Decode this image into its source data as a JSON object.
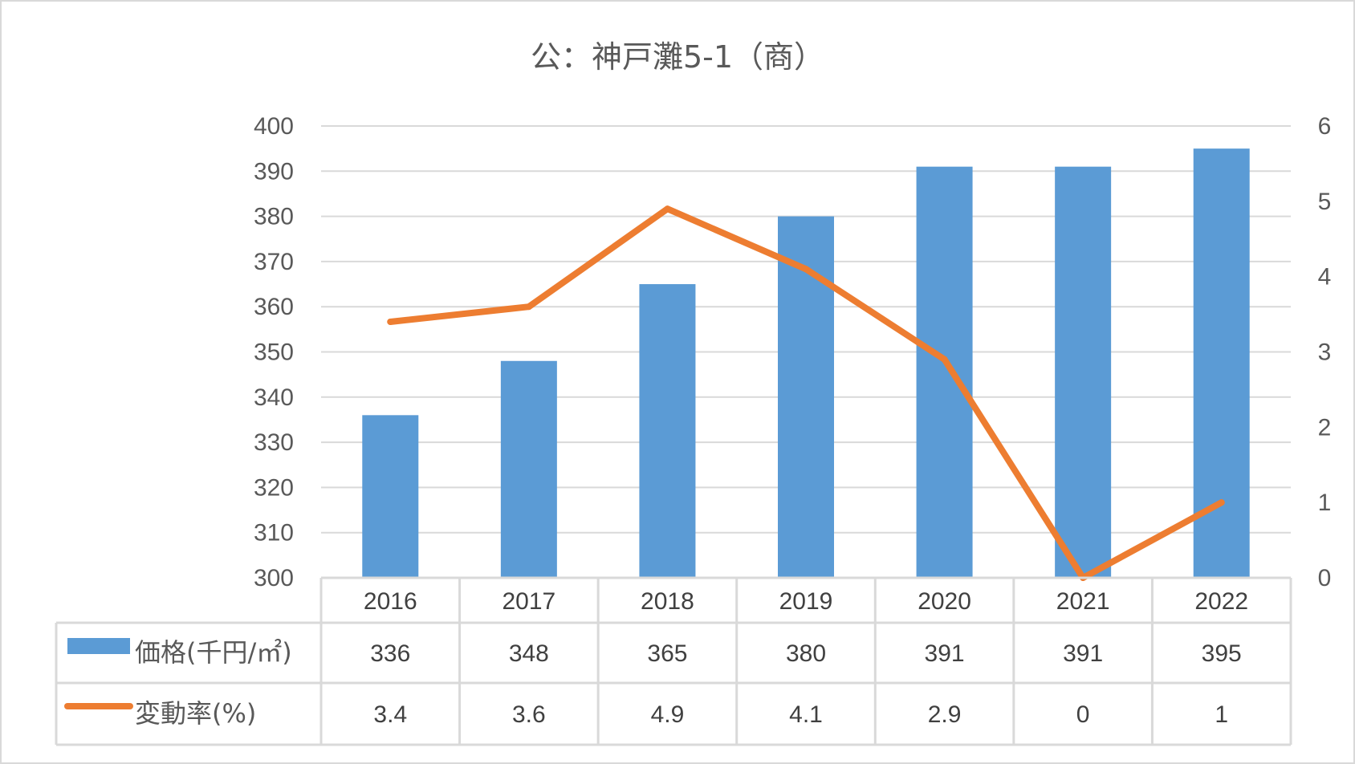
{
  "chart_data": {
    "type": "bar",
    "title": "公：神戸灘5-1（商）",
    "categories": [
      "2016",
      "2017",
      "2018",
      "2019",
      "2020",
      "2021",
      "2022"
    ],
    "series": [
      {
        "name": "価格(千円/㎡)",
        "type": "bar",
        "axis": "left",
        "color": "#5B9BD5",
        "values": [
          336,
          348,
          365,
          380,
          391,
          391,
          395
        ],
        "labels": [
          "336",
          "348",
          "365",
          "380",
          "391",
          "391",
          "395"
        ]
      },
      {
        "name": "変動率(%)",
        "type": "line",
        "axis": "right",
        "color": "#ED7D31",
        "values": [
          3.4,
          3.6,
          4.9,
          4.1,
          2.9,
          0,
          1
        ],
        "labels": [
          "3.4",
          "3.6",
          "4.9",
          "4.1",
          "2.9",
          "0",
          "1"
        ]
      }
    ],
    "ylim": [
      300,
      400
    ],
    "yticks": [
      "300",
      "310",
      "320",
      "330",
      "340",
      "350",
      "360",
      "370",
      "380",
      "390",
      "400"
    ],
    "y2lim": [
      0,
      6
    ],
    "y2ticks": [
      "0",
      "1",
      "2",
      "3",
      "4",
      "5",
      "6"
    ],
    "grid": true,
    "data_table": true
  }
}
